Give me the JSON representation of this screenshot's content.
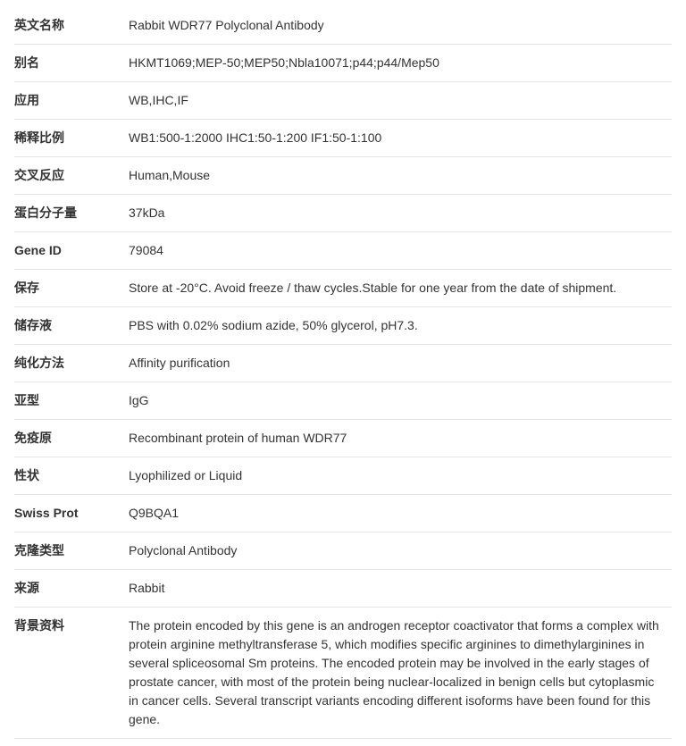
{
  "rows": [
    {
      "label": "英文名称",
      "value": "Rabbit WDR77 Polyclonal Antibody"
    },
    {
      "label": "别名",
      "value": "HKMT1069;MEP-50;MEP50;Nbla10071;p44;p44/Mep50"
    },
    {
      "label": "应用",
      "value": "WB,IHC,IF"
    },
    {
      "label": "稀释比例",
      "value": "WB1:500-1:2000 IHC1:50-1:200 IF1:50-1:100"
    },
    {
      "label": "交叉反应",
      "value": "Human,Mouse"
    },
    {
      "label": "蛋白分子量",
      "value": "37kDa"
    },
    {
      "label": "Gene ID",
      "value": "79084"
    },
    {
      "label": "保存",
      "value": "Store at -20°C. Avoid freeze / thaw cycles.Stable for one year from the date of shipment."
    },
    {
      "label": "储存液",
      "value": "PBS with 0.02% sodium azide, 50% glycerol, pH7.3."
    },
    {
      "label": "纯化方法",
      "value": "Affinity purification"
    },
    {
      "label": "亚型",
      "value": "IgG"
    },
    {
      "label": "免疫原",
      "value": "Recombinant protein of human WDR77"
    },
    {
      "label": "性状",
      "value": "Lyophilized or Liquid"
    },
    {
      "label": "Swiss Prot",
      "value": "Q9BQA1"
    },
    {
      "label": "克隆类型",
      "value": "Polyclonal Antibody"
    },
    {
      "label": "来源",
      "value": "Rabbit"
    },
    {
      "label": "背景资料",
      "value": "The protein encoded by this gene is an androgen receptor coactivator that forms a complex with protein arginine methyltransferase 5, which modifies specific arginines to dimethylarginines in several spliceosomal Sm proteins. The encoded protein may be involved in the early stages of prostate cancer, with most of the protein being nuclear-localized in benign cells but cytoplasmic in cancer cells. Several transcript variants encoding different isoforms have been found for this gene."
    }
  ]
}
